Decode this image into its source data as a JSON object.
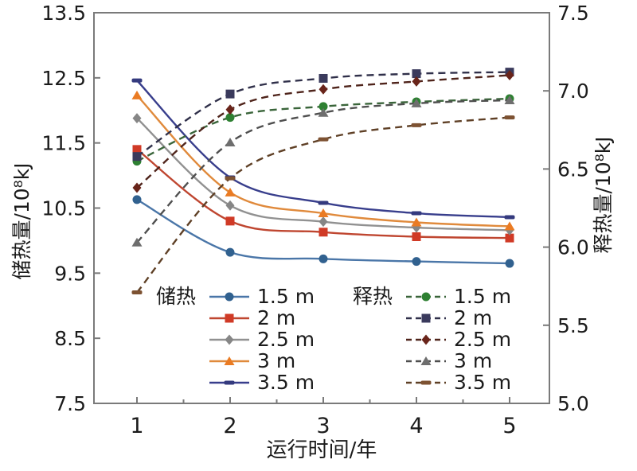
{
  "axes": {
    "x": {
      "title": "运行时间/年",
      "ticks": [
        "1",
        "2",
        "3",
        "4",
        "5"
      ]
    },
    "left": {
      "title": "储热量/10⁸kJ",
      "ticks": [
        "13.5",
        "12.5",
        "11.5",
        "10.5",
        "9.5",
        "8.5",
        "7.5"
      ]
    },
    "right": {
      "title": "释热量/10⁸kJ",
      "ticks": [
        "7.5",
        "7.0",
        "6.5",
        "6.0",
        "5.5",
        "5.0"
      ]
    }
  },
  "colors": {
    "axis_line": "#7a7a7a",
    "text": "#1b1b1b"
  },
  "chart_data": {
    "type": "line",
    "x": [
      1,
      2,
      3,
      4,
      5
    ],
    "xlabel": "运行时间/年",
    "left_ylabel": "储热量/10⁸kJ",
    "right_ylabel": "释热量/10⁸kJ",
    "left_ylim": [
      7.5,
      13.5
    ],
    "right_ylim": [
      5.0,
      7.5
    ],
    "grid": false,
    "legend_position": "inside-bottom",
    "groups": [
      {
        "name": "储热",
        "axis": "left",
        "style": "solid",
        "series": [
          {
            "name": "1.5 m",
            "marker": "circle",
            "color": "#4a76a8",
            "marker_color": "#31618f",
            "values": [
              10.63,
              9.82,
              9.72,
              9.68,
              9.65
            ]
          },
          {
            "name": "2 m",
            "marker": "square",
            "color": "#bf4630",
            "marker_color": "#d03a26",
            "values": [
              11.4,
              10.3,
              10.13,
              10.06,
              10.04
            ]
          },
          {
            "name": "2.5 m",
            "marker": "diamond",
            "color": "#919191",
            "marker_color": "#868686",
            "values": [
              11.88,
              10.54,
              10.29,
              10.2,
              10.16
            ]
          },
          {
            "name": "3 m",
            "marker": "triangle",
            "color": "#e08a3c",
            "marker_color": "#ea7b23",
            "values": [
              12.23,
              10.74,
              10.42,
              10.28,
              10.22
            ]
          },
          {
            "name": "3.5 m",
            "marker": "hbar",
            "color": "#383e8c",
            "marker_color": "#343a7e",
            "values": [
              12.46,
              10.97,
              10.58,
              10.42,
              10.36
            ]
          }
        ]
      },
      {
        "name": "释热",
        "axis": "right",
        "style": "dashed",
        "series": [
          {
            "name": "1.5 m",
            "marker": "circle",
            "color": "#3a653a",
            "marker_color": "#2e8032",
            "values": [
              6.55,
              6.83,
              6.9,
              6.93,
              6.95
            ]
          },
          {
            "name": "2 m",
            "marker": "square",
            "color": "#30304a",
            "marker_color": "#3a3a5c",
            "values": [
              6.58,
              6.98,
              7.08,
              7.11,
              7.12
            ]
          },
          {
            "name": "2.5 m",
            "marker": "diamond",
            "color": "#4f241b",
            "marker_color": "#69241a",
            "values": [
              6.38,
              6.88,
              7.01,
              7.06,
              7.1
            ]
          },
          {
            "name": "3 m",
            "marker": "triangle",
            "color": "#4f4f4f",
            "marker_color": "#6e6e6e",
            "values": [
              6.03,
              6.67,
              6.86,
              6.92,
              6.94
            ]
          },
          {
            "name": "3.5 m",
            "marker": "hbar",
            "color": "#5f4026",
            "marker_color": "#7d5232",
            "values": [
              5.71,
              6.44,
              6.69,
              6.78,
              6.83
            ]
          }
        ]
      }
    ]
  }
}
